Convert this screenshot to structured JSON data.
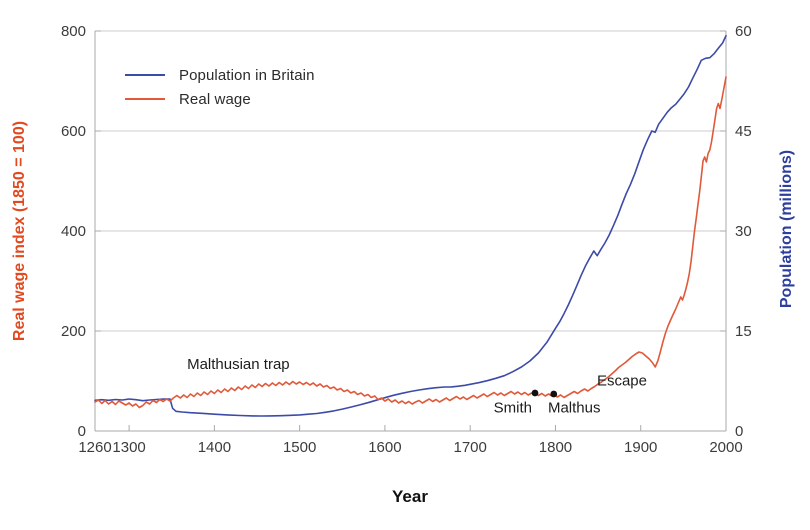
{
  "figure": {
    "x_axis_title": "Year"
  },
  "chart_data": {
    "type": "line",
    "title": "",
    "xlabel": "Year",
    "x_range": [
      1260,
      2000
    ],
    "x_ticks": [
      1260,
      1300,
      1400,
      1500,
      1600,
      1700,
      1800,
      1900,
      2000
    ],
    "grid": "horizontal",
    "legend_position": "upper-left",
    "y_left": {
      "label": "Real wage index (1850 = 100)",
      "range": [
        0,
        800
      ],
      "ticks": [
        0,
        200,
        400,
        600,
        800
      ],
      "color": "#e3491f"
    },
    "y_right": {
      "label": "Population (millions)",
      "range": [
        0,
        60
      ],
      "ticks": [
        0,
        15,
        30,
        45,
        60
      ],
      "color": "#2d3e9c"
    },
    "legend": [
      {
        "label": "Population in Britain",
        "color": "#3c4ba8"
      },
      {
        "label": "Real wage",
        "color": "#e05a3a"
      }
    ],
    "series": [
      {
        "name": "Population in Britain",
        "axis": "right",
        "color": "#3c4ba8",
        "points": [
          [
            1260,
            4.6
          ],
          [
            1268,
            4.7
          ],
          [
            1276,
            4.6
          ],
          [
            1284,
            4.72
          ],
          [
            1292,
            4.65
          ],
          [
            1300,
            4.8
          ],
          [
            1308,
            4.7
          ],
          [
            1316,
            4.55
          ],
          [
            1324,
            4.65
          ],
          [
            1332,
            4.72
          ],
          [
            1340,
            4.78
          ],
          [
            1348,
            4.8
          ],
          [
            1351,
            3.4
          ],
          [
            1355,
            2.95
          ],
          [
            1362,
            2.85
          ],
          [
            1372,
            2.75
          ],
          [
            1385,
            2.65
          ],
          [
            1400,
            2.52
          ],
          [
            1415,
            2.42
          ],
          [
            1430,
            2.33
          ],
          [
            1445,
            2.27
          ],
          [
            1455,
            2.25
          ],
          [
            1465,
            2.26
          ],
          [
            1478,
            2.3
          ],
          [
            1490,
            2.36
          ],
          [
            1500,
            2.42
          ],
          [
            1510,
            2.52
          ],
          [
            1520,
            2.63
          ],
          [
            1530,
            2.8
          ],
          [
            1540,
            3.02
          ],
          [
            1550,
            3.28
          ],
          [
            1560,
            3.58
          ],
          [
            1570,
            3.9
          ],
          [
            1580,
            4.25
          ],
          [
            1590,
            4.62
          ],
          [
            1600,
            5.0
          ],
          [
            1610,
            5.35
          ],
          [
            1620,
            5.65
          ],
          [
            1630,
            5.92
          ],
          [
            1640,
            6.15
          ],
          [
            1650,
            6.35
          ],
          [
            1660,
            6.5
          ],
          [
            1670,
            6.6
          ],
          [
            1678,
            6.62
          ],
          [
            1686,
            6.72
          ],
          [
            1694,
            6.85
          ],
          [
            1700,
            7.0
          ],
          [
            1710,
            7.25
          ],
          [
            1720,
            7.55
          ],
          [
            1730,
            7.9
          ],
          [
            1740,
            8.3
          ],
          [
            1750,
            8.9
          ],
          [
            1760,
            9.6
          ],
          [
            1770,
            10.5
          ],
          [
            1780,
            11.7
          ],
          [
            1790,
            13.3
          ],
          [
            1800,
            15.4
          ],
          [
            1805,
            16.4
          ],
          [
            1810,
            17.6
          ],
          [
            1815,
            18.9
          ],
          [
            1820,
            20.3
          ],
          [
            1825,
            21.8
          ],
          [
            1830,
            23.3
          ],
          [
            1835,
            24.7
          ],
          [
            1840,
            25.9
          ],
          [
            1845,
            27.0
          ],
          [
            1849,
            26.3
          ],
          [
            1853,
            27.2
          ],
          [
            1858,
            28.2
          ],
          [
            1863,
            29.4
          ],
          [
            1868,
            30.8
          ],
          [
            1873,
            32.3
          ],
          [
            1878,
            34.0
          ],
          [
            1883,
            35.6
          ],
          [
            1888,
            37.0
          ],
          [
            1893,
            38.6
          ],
          [
            1898,
            40.4
          ],
          [
            1903,
            42.2
          ],
          [
            1908,
            43.7
          ],
          [
            1913,
            45.0
          ],
          [
            1917,
            44.8
          ],
          [
            1921,
            46.0
          ],
          [
            1926,
            46.9
          ],
          [
            1931,
            47.8
          ],
          [
            1936,
            48.5
          ],
          [
            1941,
            49.0
          ],
          [
            1946,
            49.8
          ],
          [
            1951,
            50.6
          ],
          [
            1956,
            51.6
          ],
          [
            1961,
            52.9
          ],
          [
            1966,
            54.2
          ],
          [
            1971,
            55.6
          ],
          [
            1976,
            55.9
          ],
          [
            1981,
            56.0
          ],
          [
            1986,
            56.6
          ],
          [
            1991,
            57.4
          ],
          [
            1996,
            58.2
          ],
          [
            2000,
            59.3
          ]
        ]
      },
      {
        "name": "Real wage",
        "axis": "left",
        "color": "#e05a3a",
        "points": [
          [
            1260,
            58
          ],
          [
            1264,
            62
          ],
          [
            1268,
            55
          ],
          [
            1272,
            61
          ],
          [
            1276,
            54
          ],
          [
            1280,
            59
          ],
          [
            1284,
            53
          ],
          [
            1288,
            60
          ],
          [
            1292,
            56
          ],
          [
            1296,
            52
          ],
          [
            1300,
            56
          ],
          [
            1304,
            50
          ],
          [
            1308,
            54
          ],
          [
            1312,
            47
          ],
          [
            1316,
            51
          ],
          [
            1320,
            58
          ],
          [
            1324,
            54
          ],
          [
            1328,
            61
          ],
          [
            1332,
            57
          ],
          [
            1336,
            63
          ],
          [
            1340,
            59
          ],
          [
            1344,
            64
          ],
          [
            1348,
            60
          ],
          [
            1352,
            66
          ],
          [
            1356,
            71
          ],
          [
            1360,
            66
          ],
          [
            1364,
            72
          ],
          [
            1368,
            67
          ],
          [
            1372,
            74
          ],
          [
            1376,
            69
          ],
          [
            1380,
            76
          ],
          [
            1384,
            71
          ],
          [
            1388,
            78
          ],
          [
            1392,
            73
          ],
          [
            1396,
            80
          ],
          [
            1400,
            75
          ],
          [
            1404,
            82
          ],
          [
            1408,
            77
          ],
          [
            1412,
            84
          ],
          [
            1416,
            79
          ],
          [
            1420,
            86
          ],
          [
            1424,
            81
          ],
          [
            1428,
            88
          ],
          [
            1432,
            83
          ],
          [
            1436,
            90
          ],
          [
            1440,
            85
          ],
          [
            1444,
            92
          ],
          [
            1448,
            87
          ],
          [
            1452,
            94
          ],
          [
            1456,
            89
          ],
          [
            1460,
            95
          ],
          [
            1464,
            90
          ],
          [
            1468,
            96
          ],
          [
            1472,
            91
          ],
          [
            1476,
            97
          ],
          [
            1480,
            92
          ],
          [
            1484,
            98
          ],
          [
            1488,
            93
          ],
          [
            1492,
            99
          ],
          [
            1496,
            94
          ],
          [
            1500,
            98
          ],
          [
            1504,
            93
          ],
          [
            1508,
            97
          ],
          [
            1512,
            92
          ],
          [
            1516,
            96
          ],
          [
            1520,
            90
          ],
          [
            1524,
            94
          ],
          [
            1528,
            88
          ],
          [
            1532,
            91
          ],
          [
            1536,
            85
          ],
          [
            1540,
            88
          ],
          [
            1544,
            82
          ],
          [
            1548,
            85
          ],
          [
            1552,
            79
          ],
          [
            1556,
            82
          ],
          [
            1560,
            76
          ],
          [
            1564,
            79
          ],
          [
            1568,
            73
          ],
          [
            1572,
            76
          ],
          [
            1576,
            70
          ],
          [
            1580,
            73
          ],
          [
            1584,
            67
          ],
          [
            1588,
            70
          ],
          [
            1592,
            63
          ],
          [
            1596,
            66
          ],
          [
            1600,
            60
          ],
          [
            1604,
            64
          ],
          [
            1608,
            58
          ],
          [
            1612,
            62
          ],
          [
            1616,
            56
          ],
          [
            1620,
            60
          ],
          [
            1624,
            55
          ],
          [
            1628,
            59
          ],
          [
            1632,
            54
          ],
          [
            1636,
            58
          ],
          [
            1640,
            61
          ],
          [
            1644,
            56
          ],
          [
            1648,
            60
          ],
          [
            1652,
            64
          ],
          [
            1656,
            59
          ],
          [
            1660,
            63
          ],
          [
            1664,
            58
          ],
          [
            1668,
            62
          ],
          [
            1672,
            66
          ],
          [
            1676,
            61
          ],
          [
            1680,
            65
          ],
          [
            1684,
            69
          ],
          [
            1688,
            64
          ],
          [
            1692,
            68
          ],
          [
            1696,
            63
          ],
          [
            1700,
            67
          ],
          [
            1704,
            71
          ],
          [
            1708,
            66
          ],
          [
            1712,
            70
          ],
          [
            1716,
            74
          ],
          [
            1720,
            69
          ],
          [
            1724,
            73
          ],
          [
            1728,
            77
          ],
          [
            1732,
            72
          ],
          [
            1736,
            76
          ],
          [
            1740,
            71
          ],
          [
            1744,
            75
          ],
          [
            1748,
            79
          ],
          [
            1752,
            74
          ],
          [
            1756,
            78
          ],
          [
            1760,
            73
          ],
          [
            1764,
            77
          ],
          [
            1768,
            72
          ],
          [
            1772,
            76
          ],
          [
            1776,
            76
          ],
          [
            1780,
            71
          ],
          [
            1784,
            75
          ],
          [
            1788,
            70
          ],
          [
            1792,
            74
          ],
          [
            1796,
            70
          ],
          [
            1798,
            74
          ],
          [
            1802,
            68
          ],
          [
            1806,
            72
          ],
          [
            1810,
            67
          ],
          [
            1814,
            71
          ],
          [
            1818,
            75
          ],
          [
            1822,
            79
          ],
          [
            1826,
            75
          ],
          [
            1830,
            80
          ],
          [
            1834,
            84
          ],
          [
            1838,
            80
          ],
          [
            1842,
            85
          ],
          [
            1846,
            89
          ],
          [
            1850,
            94
          ],
          [
            1854,
            98
          ],
          [
            1858,
            103
          ],
          [
            1862,
            108
          ],
          [
            1866,
            114
          ],
          [
            1870,
            120
          ],
          [
            1874,
            127
          ],
          [
            1878,
            132
          ],
          [
            1882,
            137
          ],
          [
            1886,
            143
          ],
          [
            1890,
            149
          ],
          [
            1894,
            154
          ],
          [
            1898,
            158
          ],
          [
            1902,
            156
          ],
          [
            1906,
            150
          ],
          [
            1910,
            144
          ],
          [
            1914,
            136
          ],
          [
            1917,
            128
          ],
          [
            1920,
            140
          ],
          [
            1923,
            158
          ],
          [
            1926,
            178
          ],
          [
            1929,
            196
          ],
          [
            1932,
            210
          ],
          [
            1935,
            222
          ],
          [
            1938,
            233
          ],
          [
            1941,
            244
          ],
          [
            1944,
            256
          ],
          [
            1947,
            268
          ],
          [
            1949,
            262
          ],
          [
            1951,
            272
          ],
          [
            1953,
            284
          ],
          [
            1955,
            298
          ],
          [
            1957,
            315
          ],
          [
            1959,
            338
          ],
          [
            1961,
            368
          ],
          [
            1963,
            398
          ],
          [
            1965,
            425
          ],
          [
            1967,
            452
          ],
          [
            1969,
            478
          ],
          [
            1971,
            508
          ],
          [
            1973,
            540
          ],
          [
            1975,
            548
          ],
          [
            1977,
            538
          ],
          [
            1979,
            555
          ],
          [
            1981,
            562
          ],
          [
            1983,
            578
          ],
          [
            1985,
            600
          ],
          [
            1987,
            622
          ],
          [
            1989,
            645
          ],
          [
            1991,
            655
          ],
          [
            1993,
            645
          ],
          [
            1995,
            662
          ],
          [
            1997,
            680
          ],
          [
            2000,
            708
          ]
        ]
      }
    ],
    "point_markers": [
      {
        "label": "Smith",
        "year": 1776,
        "wage": 76
      },
      {
        "label": "Malthus",
        "year": 1798,
        "wage": 74
      }
    ],
    "annotations": [
      {
        "text": "Malthusian trap",
        "year": 1368,
        "wage": 124,
        "anchor": "start"
      },
      {
        "text": "Smith",
        "year": 1750,
        "wage": 37,
        "anchor": "middle"
      },
      {
        "text": "Malthus",
        "year": 1822,
        "wage": 37,
        "anchor": "middle"
      },
      {
        "text": "Escape",
        "year": 1878,
        "wage": 91,
        "anchor": "middle"
      }
    ]
  }
}
